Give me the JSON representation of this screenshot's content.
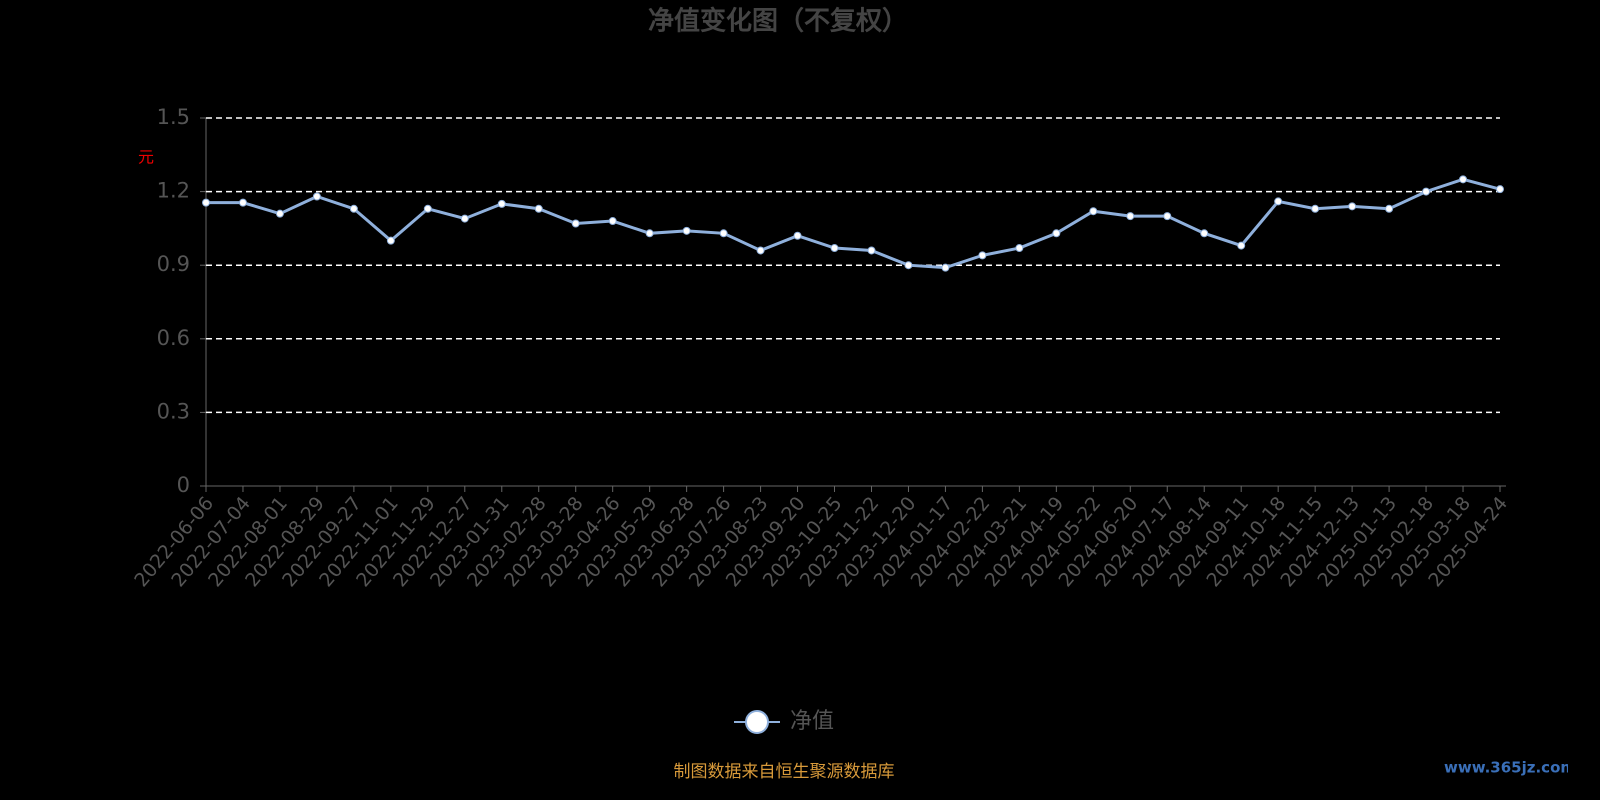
{
  "chart_data": {
    "type": "line",
    "title": "净值变化图（不复权）",
    "y_label": "元",
    "categories": [
      "2022-06-06",
      "2022-07-04",
      "2022-08-01",
      "2022-08-29",
      "2022-09-27",
      "2022-11-01",
      "2022-11-29",
      "2022-12-27",
      "2023-01-31",
      "2023-02-28",
      "2023-03-28",
      "2023-04-26",
      "2023-05-29",
      "2023-06-28",
      "2023-07-26",
      "2023-08-23",
      "2023-09-20",
      "2023-10-25",
      "2023-11-22",
      "2023-12-20",
      "2024-01-17",
      "2024-02-22",
      "2024-03-21",
      "2024-04-19",
      "2024-05-22",
      "2024-06-20",
      "2024-07-17",
      "2024-08-14",
      "2024-09-11",
      "2024-10-18",
      "2024-11-15",
      "2024-12-13",
      "2025-01-13",
      "2025-02-18",
      "2025-03-18",
      "2025-04-24"
    ],
    "series": [
      {
        "name": "净值",
        "color": "#8fb0dc",
        "values": [
          1.155,
          1.155,
          1.11,
          1.18,
          1.13,
          1.0,
          1.13,
          1.09,
          1.15,
          1.13,
          1.07,
          1.08,
          1.03,
          1.04,
          1.03,
          0.96,
          1.02,
          0.97,
          0.96,
          0.9,
          0.89,
          0.94,
          0.97,
          1.03,
          1.12,
          1.1,
          1.1,
          1.03,
          0.98,
          1.16,
          1.13,
          1.14,
          1.13,
          1.2,
          1.25,
          1.21
        ]
      }
    ],
    "ylim": [
      0,
      1.5
    ],
    "yticks": [
      0,
      0.3,
      0.6,
      0.9,
      1.2,
      1.5
    ],
    "grid": true,
    "footer": "制图数据来自恒生聚源数据库",
    "watermark": "www.365jz.com"
  }
}
